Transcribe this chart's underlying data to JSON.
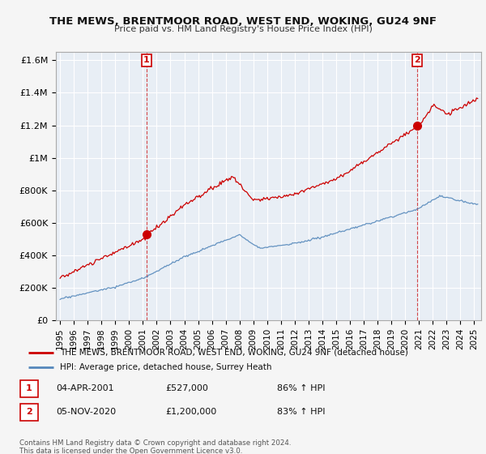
{
  "title": "THE MEWS, BRENTMOOR ROAD, WEST END, WOKING, GU24 9NF",
  "subtitle": "Price paid vs. HM Land Registry's House Price Index (HPI)",
  "ylim": [
    0,
    1650000
  ],
  "yticks": [
    0,
    200000,
    400000,
    600000,
    800000,
    1000000,
    1200000,
    1400000,
    1600000
  ],
  "ytick_labels": [
    "£0",
    "£200K",
    "£400K",
    "£600K",
    "£800K",
    "£1M",
    "£1.2M",
    "£1.4M",
    "£1.6M"
  ],
  "red_line_color": "#cc0000",
  "blue_line_color": "#5588bb",
  "plot_bg_color": "#e8eef5",
  "background_color": "#f5f5f5",
  "grid_color": "#ffffff",
  "annotation1_year": 2001.25,
  "annotation1_value": 527000,
  "annotation2_year": 2020.85,
  "annotation2_value": 1200000,
  "legend_red_label": "THE MEWS, BRENTMOOR ROAD, WEST END, WOKING, GU24 9NF (detached house)",
  "legend_blue_label": "HPI: Average price, detached house, Surrey Heath",
  "note1_date": "04-APR-2001",
  "note1_price": "£527,000",
  "note1_hpi": "86% ↑ HPI",
  "note2_date": "05-NOV-2020",
  "note2_price": "£1,200,000",
  "note2_hpi": "83% ↑ HPI",
  "copyright_text": "Contains HM Land Registry data © Crown copyright and database right 2024.\nThis data is licensed under the Open Government Licence v3.0.",
  "xlim_start": 1994.7,
  "xlim_end": 2025.5
}
